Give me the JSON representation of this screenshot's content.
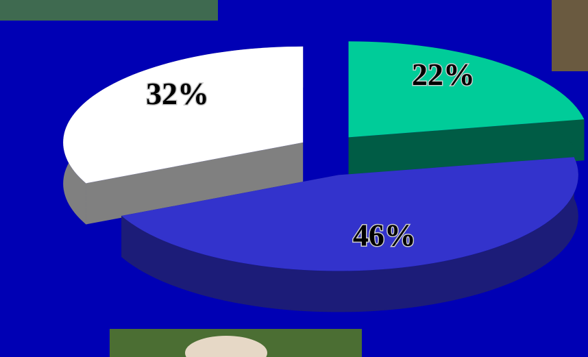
{
  "chart_data": {
    "type": "pie",
    "categories": [
      null,
      null,
      null
    ],
    "values": [
      22,
      46,
      32
    ],
    "value_labels": [
      "22%",
      "46%",
      "32%"
    ],
    "colors": [
      "#00cc99",
      "#3333cc",
      "#ffffff"
    ],
    "side_colors": [
      "#005c45",
      "#1c1c78",
      "#808080"
    ],
    "background": "#0000b4"
  }
}
